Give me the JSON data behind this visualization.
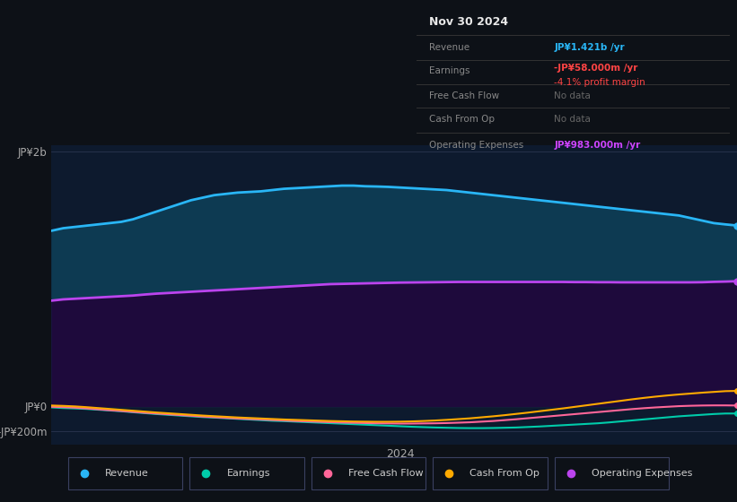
{
  "background_color": "#0d1117",
  "plot_bg_color": "#0d1a2e",
  "xlabel": "2024",
  "tooltip": {
    "title": "Nov 30 2024",
    "revenue_label": "Revenue",
    "revenue_value": "JP¥1.421b /yr",
    "earnings_label": "Earnings",
    "earnings_value": "-JP¥58.000m /yr",
    "earnings_margin": "-4.1% profit margin",
    "fcf_label": "Free Cash Flow",
    "fcf_value": "No data",
    "cashfromop_label": "Cash From Op",
    "cashfromop_value": "No data",
    "opex_label": "Operating Expenses",
    "opex_value": "JP¥983.000m /yr",
    "revenue_color": "#29b6f6",
    "earnings_value_color": "#ff4444",
    "earnings_margin_color": "#ff4444",
    "opex_value_color": "#cc44ff",
    "nodata_color": "#666666",
    "label_color": "#888888",
    "title_color": "#ffffff"
  },
  "n_points": 60,
  "revenue": {
    "values": [
      1.38,
      1.4,
      1.41,
      1.42,
      1.43,
      1.44,
      1.45,
      1.47,
      1.5,
      1.53,
      1.56,
      1.59,
      1.62,
      1.64,
      1.66,
      1.67,
      1.68,
      1.685,
      1.69,
      1.7,
      1.71,
      1.715,
      1.72,
      1.725,
      1.73,
      1.735,
      1.735,
      1.73,
      1.728,
      1.725,
      1.72,
      1.715,
      1.71,
      1.705,
      1.7,
      1.69,
      1.68,
      1.67,
      1.66,
      1.65,
      1.64,
      1.63,
      1.62,
      1.61,
      1.6,
      1.59,
      1.58,
      1.57,
      1.56,
      1.55,
      1.54,
      1.53,
      1.52,
      1.51,
      1.5,
      1.48,
      1.46,
      1.44,
      1.43,
      1.421
    ],
    "color": "#29b6f6",
    "fill_color": "#0d3a52",
    "line_width": 2.0,
    "label": "Revenue"
  },
  "opex": {
    "values": [
      0.83,
      0.84,
      0.845,
      0.85,
      0.855,
      0.86,
      0.865,
      0.87,
      0.878,
      0.885,
      0.89,
      0.895,
      0.9,
      0.905,
      0.91,
      0.915,
      0.92,
      0.925,
      0.93,
      0.935,
      0.94,
      0.945,
      0.95,
      0.955,
      0.96,
      0.962,
      0.964,
      0.966,
      0.968,
      0.97,
      0.972,
      0.973,
      0.974,
      0.975,
      0.976,
      0.977,
      0.977,
      0.977,
      0.977,
      0.977,
      0.977,
      0.977,
      0.977,
      0.977,
      0.977,
      0.976,
      0.976,
      0.975,
      0.975,
      0.974,
      0.974,
      0.974,
      0.974,
      0.974,
      0.974,
      0.974,
      0.975,
      0.978,
      0.98,
      0.983
    ],
    "color": "#bb44ee",
    "fill_color": "#1e0a3c",
    "line_width": 2.0,
    "label": "Operating Expenses"
  },
  "earnings": {
    "values": [
      -0.01,
      -0.015,
      -0.018,
      -0.022,
      -0.028,
      -0.034,
      -0.04,
      -0.048,
      -0.055,
      -0.062,
      -0.068,
      -0.074,
      -0.08,
      -0.086,
      -0.09,
      -0.095,
      -0.1,
      -0.105,
      -0.11,
      -0.115,
      -0.118,
      -0.122,
      -0.126,
      -0.13,
      -0.134,
      -0.138,
      -0.142,
      -0.146,
      -0.15,
      -0.154,
      -0.158,
      -0.162,
      -0.165,
      -0.168,
      -0.17,
      -0.172,
      -0.173,
      -0.173,
      -0.172,
      -0.17,
      -0.168,
      -0.164,
      -0.16,
      -0.155,
      -0.15,
      -0.145,
      -0.14,
      -0.135,
      -0.128,
      -0.12,
      -0.112,
      -0.104,
      -0.096,
      -0.088,
      -0.08,
      -0.074,
      -0.068,
      -0.062,
      -0.058,
      -0.058
    ],
    "color": "#00ccaa",
    "line_width": 1.5,
    "label": "Earnings"
  },
  "fcf": {
    "values": [
      -0.005,
      -0.008,
      -0.012,
      -0.018,
      -0.025,
      -0.032,
      -0.038,
      -0.045,
      -0.052,
      -0.058,
      -0.064,
      -0.07,
      -0.076,
      -0.082,
      -0.087,
      -0.092,
      -0.097,
      -0.101,
      -0.105,
      -0.109,
      -0.113,
      -0.117,
      -0.12,
      -0.123,
      -0.126,
      -0.129,
      -0.131,
      -0.133,
      -0.135,
      -0.136,
      -0.137,
      -0.137,
      -0.136,
      -0.135,
      -0.133,
      -0.13,
      -0.127,
      -0.122,
      -0.117,
      -0.11,
      -0.103,
      -0.095,
      -0.087,
      -0.079,
      -0.071,
      -0.063,
      -0.055,
      -0.047,
      -0.039,
      -0.031,
      -0.023,
      -0.016,
      -0.01,
      -0.005,
      0.0,
      0.003,
      0.005,
      0.006,
      0.006,
      0.005
    ],
    "color": "#ff6699",
    "line_width": 1.5,
    "label": "Free Cash Flow"
  },
  "cashfromop": {
    "values": [
      0.005,
      0.002,
      -0.002,
      -0.008,
      -0.015,
      -0.022,
      -0.029,
      -0.036,
      -0.043,
      -0.05,
      -0.056,
      -0.062,
      -0.068,
      -0.074,
      -0.079,
      -0.084,
      -0.089,
      -0.093,
      -0.097,
      -0.101,
      -0.105,
      -0.108,
      -0.111,
      -0.114,
      -0.117,
      -0.119,
      -0.121,
      -0.122,
      -0.123,
      -0.123,
      -0.122,
      -0.12,
      -0.117,
      -0.113,
      -0.108,
      -0.102,
      -0.096,
      -0.088,
      -0.08,
      -0.071,
      -0.061,
      -0.051,
      -0.04,
      -0.029,
      -0.018,
      -0.006,
      0.006,
      0.018,
      0.03,
      0.042,
      0.054,
      0.065,
      0.075,
      0.084,
      0.092,
      0.099,
      0.106,
      0.112,
      0.118,
      0.12
    ],
    "color": "#ffaa00",
    "line_width": 1.5,
    "label": "Cash From Op"
  },
  "ylim": [
    -0.3,
    2.05
  ],
  "yticks": [
    2.0,
    0.0,
    -0.2
  ],
  "ytick_labels": [
    "JP¥2b",
    "JP¥0",
    "-JP¥200m"
  ],
  "grid_color": "#2a3550",
  "legend_text_color": "#cccccc",
  "axis_text_color": "#aaaaaa"
}
